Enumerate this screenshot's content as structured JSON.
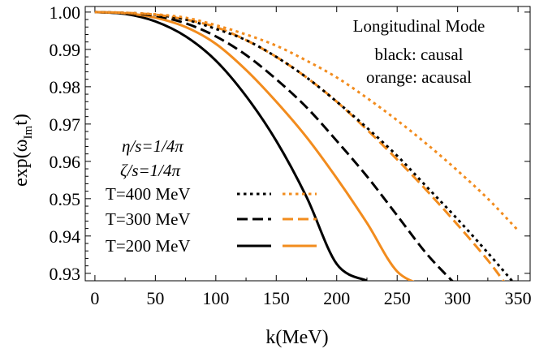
{
  "chart_data": {
    "type": "line",
    "xlabel": "k(MeV)",
    "ylabel_main": "exp(ω",
    "ylabel_sub": "Im",
    "ylabel_tail": "t)",
    "xlim": [
      -8,
      360
    ],
    "ylim": [
      0.928,
      1.0015
    ],
    "x_ticks": [
      0,
      50,
      100,
      150,
      200,
      250,
      300,
      350
    ],
    "y_ticks": [
      0.93,
      0.94,
      0.95,
      0.96,
      0.97,
      0.98,
      0.99,
      1.0
    ],
    "y_tick_labels": [
      "0.93",
      "0.94",
      "0.95",
      "0.96",
      "0.97",
      "0.98",
      "0.99",
      "1.00"
    ],
    "annotations": {
      "mode_title": "Longitudinal Mode",
      "black_note": "black: causal",
      "orange_note": "orange: acausal",
      "eta": "η/s=1/4π",
      "zeta": "ζ/s=1/4π"
    },
    "colors": {
      "causal": "#000000",
      "acausal": "#f28c1e"
    },
    "legend_rows": [
      {
        "label": "T=400 MeV",
        "style": "dotted"
      },
      {
        "label": "T=300 MeV",
        "style": "dashed"
      },
      {
        "label": "T=200 MeV",
        "style": "solid"
      }
    ],
    "series": [
      {
        "color_key": "causal",
        "style": "solid",
        "x": [
          0,
          25,
          50,
          75,
          100,
          125,
          150,
          175,
          200,
          225
        ],
        "y": [
          1.0,
          0.9995,
          0.9975,
          0.9935,
          0.987,
          0.9775,
          0.9655,
          0.9505,
          0.9325,
          0.928
        ]
      },
      {
        "color_key": "acausal",
        "style": "solid",
        "x": [
          0,
          25,
          50,
          75,
          100,
          125,
          150,
          175,
          200,
          225,
          250,
          275
        ],
        "y": [
          1.0,
          0.9997,
          0.9985,
          0.996,
          0.9915,
          0.9845,
          0.976,
          0.9665,
          0.9555,
          0.9435,
          0.9305,
          0.9265
        ]
      },
      {
        "color_key": "causal",
        "style": "dashed",
        "x": [
          0,
          25,
          50,
          75,
          100,
          125,
          150,
          175,
          200,
          225,
          250,
          275,
          300
        ],
        "y": [
          1.0,
          0.9997,
          0.999,
          0.997,
          0.9935,
          0.9885,
          0.982,
          0.9745,
          0.9655,
          0.956,
          0.9455,
          0.935,
          0.9265
        ]
      },
      {
        "color_key": "acausal",
        "style": "dashed",
        "x": [
          0,
          25,
          50,
          75,
          100,
          125,
          150,
          175,
          200,
          225,
          250,
          275,
          300,
          325,
          340
        ],
        "y": [
          1.0,
          0.9998,
          0.9993,
          0.998,
          0.996,
          0.9925,
          0.988,
          0.9825,
          0.976,
          0.9685,
          0.9605,
          0.952,
          0.943,
          0.9335,
          0.927
        ]
      },
      {
        "color_key": "causal",
        "style": "dotted",
        "x": [
          0,
          25,
          50,
          75,
          100,
          125,
          150,
          175,
          200,
          225,
          250,
          275,
          300,
          325,
          345
        ],
        "y": [
          1.0,
          0.9998,
          0.9993,
          0.998,
          0.9955,
          0.9925,
          0.988,
          0.9825,
          0.976,
          0.969,
          0.9615,
          0.953,
          0.9445,
          0.9355,
          0.928
        ]
      },
      {
        "color_key": "acausal",
        "style": "dotted",
        "x": [
          0,
          25,
          50,
          75,
          100,
          125,
          150,
          175,
          200,
          225,
          250,
          275,
          300,
          325,
          350
        ],
        "y": [
          1.0,
          0.9998,
          0.9994,
          0.9985,
          0.9965,
          0.994,
          0.991,
          0.987,
          0.9825,
          0.977,
          0.971,
          0.9645,
          0.9575,
          0.95,
          0.9415
        ]
      }
    ]
  }
}
